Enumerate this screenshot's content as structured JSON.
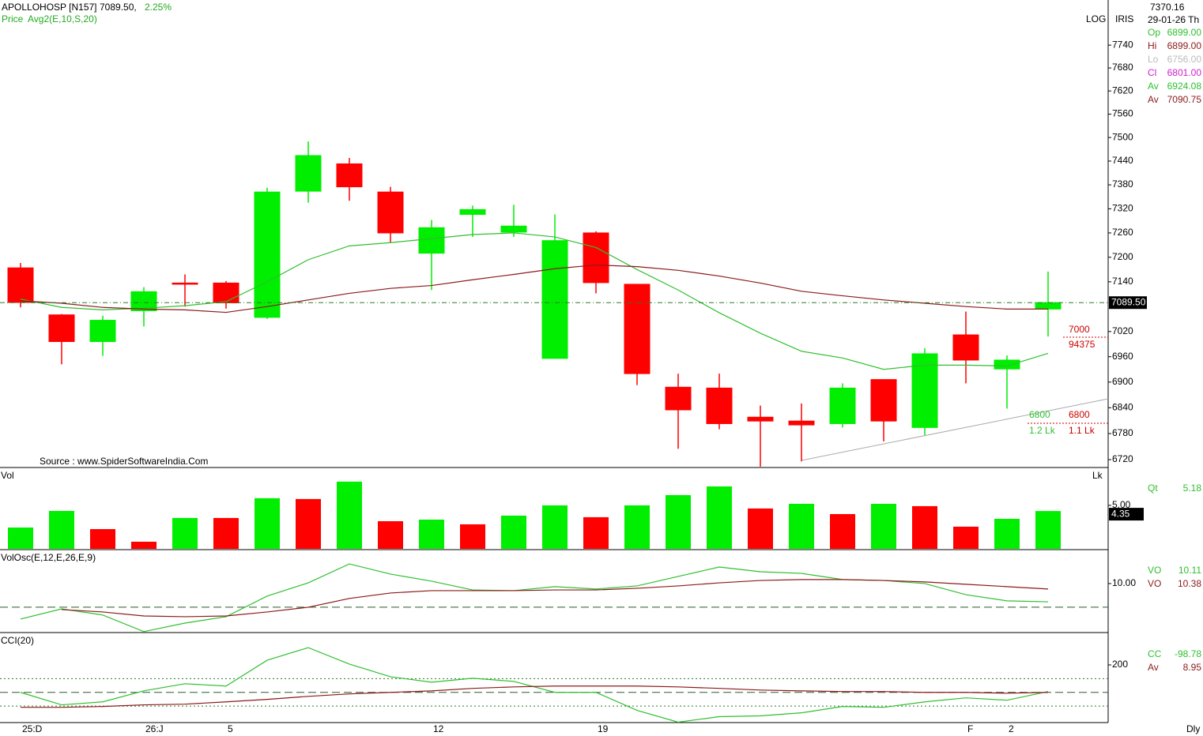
{
  "chart_data": [
    {
      "type": "candlestick",
      "title": "APOLLOHOSP [N157]",
      "price_label": "7089.50,",
      "change_label": "2.25%",
      "series_label": "Price",
      "overlay_label": "Avg2(E,10,S,20)",
      "source": "Source : www.SpiderSoftwareIndia.Com",
      "scale_label": "LOG",
      "tool_label": "IRIS",
      "interval": "Dly",
      "cursor_price": "7370.16",
      "cursor_date": "29-01-26 Th",
      "categories": [
        "25:D",
        null,
        null,
        "26:J",
        null,
        "5",
        null,
        null,
        null,
        null,
        "12",
        null,
        null,
        null,
        "19",
        null,
        null,
        null,
        null,
        null,
        null,
        null,
        null,
        "F",
        "2",
        null
      ],
      "open": [
        7174,
        7060,
        6996,
        7070,
        7137,
        7137,
        7054,
        7364,
        7433,
        7362,
        7210,
        7306,
        7262,
        6956,
        7260,
        7134,
        6888,
        6886,
        6818,
        6809,
        6803,
        6906,
        6794,
        7012,
        6931,
        7074
      ],
      "high": [
        7186,
        7062,
        7058,
        7127,
        7158,
        7142,
        7373,
        7490,
        7448,
        7375,
        7292,
        7328,
        7330,
        7306,
        7264,
        7134,
        6920,
        6920,
        6845,
        6850,
        6897,
        6906,
        6980,
        7068,
        6963,
        7165
      ],
      "low": [
        7078,
        6942,
        6962,
        7032,
        7080,
        7075,
        7050,
        7335,
        7340,
        7236,
        7120,
        7250,
        7250,
        6956,
        7112,
        6893,
        6745,
        6790,
        6704,
        6716,
        6794,
        6762,
        6776,
        6897,
        6838,
        7008
      ],
      "close": [
        7090,
        6996,
        7047,
        7116,
        7135,
        7089,
        7362,
        7454,
        7375,
        7260,
        7273,
        7318,
        7277,
        7241,
        7138,
        6920,
        6835,
        6803,
        6809,
        6800,
        6886,
        6809,
        6967,
        6952,
        6952,
        7089.5
      ],
      "up_color": "#00ee00",
      "down_color": "#ff0000",
      "overlays": [
        {
          "color": "#2fbf2f",
          "values": [
            7098,
            7078,
            7072,
            7076,
            7082,
            7092,
            7140,
            7194,
            7228,
            7236,
            7246,
            7256,
            7260,
            7250,
            7224,
            7170,
            7120,
            7065,
            7016,
            6973,
            6957,
            6930,
            6940,
            6940,
            6938,
            6968
          ]
        },
        {
          "color": "#8b1a1a",
          "values": [
            7094,
            7088,
            7078,
            7074,
            7072,
            7066,
            7080,
            7096,
            7112,
            7124,
            7131,
            7145,
            7158,
            7172,
            7181,
            7177,
            7168,
            7154,
            7137,
            7117,
            7106,
            7096,
            7088,
            7080,
            7074,
            7074
          ]
        }
      ],
      "last_price": {
        "value": 7089.5,
        "label": "7089.50"
      },
      "log": true,
      "ylim": [
        6702,
        7860
      ],
      "yticks": [
        6720,
        6780,
        6840,
        6900,
        6960,
        7020,
        7140,
        7200,
        7260,
        7320,
        7380,
        7440,
        7500,
        7560,
        7620,
        7680,
        7740
      ],
      "annotations": [
        "7000",
        "94375",
        "6800",
        "1.2 Lk",
        "6800",
        "1.1 Lk"
      ],
      "readouts": [
        {
          "label": "Op",
          "value": "6899.00",
          "color": "#2fbf2f"
        },
        {
          "label": "Hi",
          "value": "6899.00",
          "color": "#8b1a1a"
        },
        {
          "label": "Lo",
          "value": "6756.00",
          "color": "#bbbbbb"
        },
        {
          "label": "Cl",
          "value": "6801.00",
          "color": "#cc22cc"
        },
        {
          "label": "Av",
          "value": "6924.08",
          "color": "#2fbf2f"
        },
        {
          "label": "Av",
          "value": "7090.75",
          "color": "#8b1a1a"
        }
      ]
    },
    {
      "type": "bar",
      "title": "Vol",
      "unit": "Lk",
      "values": [
        2.45,
        4.36,
        2.27,
        0.82,
        3.55,
        3.55,
        5.82,
        5.73,
        7.73,
        3.18,
        3.36,
        2.82,
        3.82,
        5.0,
        3.64,
        5.0,
        6.18,
        7.18,
        4.64,
        5.18,
        4.0,
        5.18,
        4.91,
        2.55,
        3.45,
        4.35
      ],
      "colors": [
        "#00ee00",
        "#00ee00",
        "#ff0000",
        "#ff0000",
        "#00ee00",
        "#ff0000",
        "#00ee00",
        "#ff0000",
        "#00ee00",
        "#ff0000",
        "#00ee00",
        "#ff0000",
        "#00ee00",
        "#00ee00",
        "#ff0000",
        "#00ee00",
        "#00ee00",
        "#00ee00",
        "#ff0000",
        "#00ee00",
        "#ff0000",
        "#00ee00",
        "#ff0000",
        "#ff0000",
        "#00ee00",
        "#00ee00"
      ],
      "last_label": "4.35",
      "ylim": [
        0,
        8.9
      ],
      "yticks": [
        {
          "value": 5,
          "label": "5.00"
        }
      ],
      "readouts": [
        {
          "label": "Qt",
          "value": "5.18",
          "color": "#2fbf2f"
        }
      ]
    },
    {
      "type": "line",
      "title": "VolOsc(E,12,E,26,E,9)",
      "series": [
        {
          "color": "#2fbf2f",
          "values": [
            -5,
            -0.7,
            -3.3,
            -10.3,
            -6.7,
            -4,
            4.7,
            10.3,
            18.3,
            14,
            11,
            7.3,
            7,
            8.7,
            7.7,
            9,
            13,
            17,
            15,
            14.3,
            11.7,
            11.3,
            10,
            5.3,
            2.7,
            2.3
          ]
        },
        {
          "color": "#8b1a1a",
          "values": [
            null,
            -1,
            -2,
            -3.7,
            -4,
            -3.7,
            -2,
            0,
            3.7,
            6,
            7,
            7,
            7,
            7.3,
            7.3,
            8,
            9,
            10.3,
            11.3,
            11.7,
            11.7,
            11.3,
            10.7,
            9.7,
            8.7,
            7.7
          ]
        }
      ],
      "ref_lines": [
        {
          "value": 0,
          "style": "dashed"
        }
      ],
      "ylim": [
        -10.7,
        24
      ],
      "yticks": [
        {
          "value": 10,
          "label": "10.00"
        }
      ],
      "readouts": [
        {
          "label": "VO",
          "value": "10.11",
          "color": "#2fbf2f"
        },
        {
          "label": "VO",
          "value": "10.38",
          "color": "#8b1a1a"
        }
      ]
    },
    {
      "type": "line",
      "title": "CCI(20)",
      "series": [
        {
          "color": "#2fbf2f",
          "values": [
            0,
            -91,
            -69,
            11,
            63,
            46,
            234,
            326,
            206,
            114,
            74,
            103,
            80,
            0,
            0,
            -131,
            -217,
            -177,
            -171,
            -149,
            -103,
            -109,
            -69,
            -40,
            -57,
            6
          ]
        },
        {
          "color": "#8b1a1a",
          "values": [
            -109,
            -109,
            -103,
            -91,
            -86,
            -69,
            -51,
            -29,
            -11,
            0,
            11,
            29,
            40,
            46,
            46,
            46,
            40,
            29,
            17,
            11,
            6,
            6,
            0,
            0,
            -6,
            0
          ]
        }
      ],
      "ref_lines": [
        {
          "value": 100,
          "style": "dotted"
        },
        {
          "value": 0,
          "style": "dashed"
        },
        {
          "value": -100,
          "style": "dotted"
        }
      ],
      "ylim": [
        -220,
        430
      ],
      "yticks": [
        200
      ],
      "readouts": [
        {
          "label": "CC",
          "value": "-98.78",
          "color": "#2fbf2f"
        },
        {
          "label": "Av",
          "value": "8.95",
          "color": "#8b1a1a"
        }
      ]
    }
  ]
}
